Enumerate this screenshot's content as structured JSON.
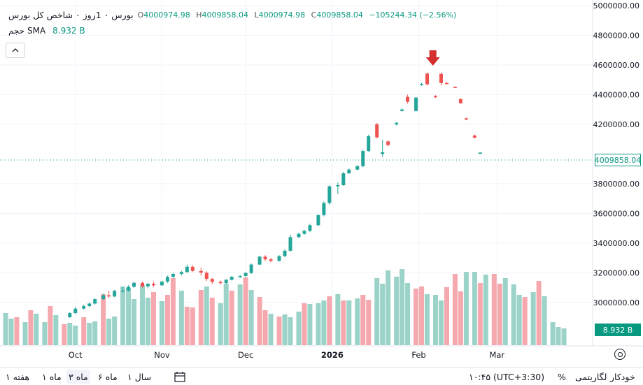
{
  "legend": {
    "title": "بورس ۰ 1روز ۰ شاخص کل بورس",
    "open_label": "O",
    "open": "4000974.98",
    "high_label": "H",
    "high": "4009858.04",
    "low_label": "L",
    "low": "4000974.98",
    "close_label": "C",
    "close": "4009858.04",
    "change": "−105244.34 (−2.56%)"
  },
  "volume_legend": {
    "name": "حجم SMA",
    "value": "8.932 B"
  },
  "collapse_icon": "chevron-up-icon",
  "price_tag": "4009858.04",
  "volume_tag": "8.932 B",
  "settings_icon": "gear-icon",
  "colors": {
    "up": "#26a69a",
    "down": "#ef5350",
    "volume_up": "#9bd3c9",
    "volume_down": "#f5a8ad",
    "marker": "#d32f2f"
  },
  "chart_data": {
    "type": "candlestick",
    "y_ticks": [
      "5000000.00",
      "4800000.00",
      "4600000.00",
      "4400000.00",
      "4200000.00",
      "3800000.00",
      "3600000.00",
      "3400000.00",
      "3200000.00",
      "3000000.00"
    ],
    "ylim": [
      2900000,
      5000000
    ],
    "x_ticks": [
      {
        "label": "Oct",
        "date": "2025-10-01"
      },
      {
        "label": "Nov",
        "date": "2025-11-01"
      },
      {
        "label": "Dec",
        "date": "2025-12-01"
      },
      {
        "label": "2026",
        "date": "2026-01-01"
      },
      {
        "label": "Feb",
        "date": "2026-02-01"
      },
      {
        "label": "Mar",
        "date": "2026-03-01"
      }
    ],
    "xlim": [
      "2025-09-06",
      "2026-03-31"
    ],
    "marker": {
      "type": "arrow-down",
      "date": "2026-01-17"
    },
    "candles": [
      {
        "d": "2025-09-29",
        "o": 2900000,
        "h": 2935000,
        "l": 2895000,
        "c": 2928000
      },
      {
        "d": "2025-10-01",
        "o": 2928000,
        "h": 2970000,
        "l": 2920000,
        "c": 2958000
      },
      {
        "d": "2025-10-04",
        "o": 2958000,
        "h": 2985000,
        "l": 2950000,
        "c": 2975000
      },
      {
        "d": "2025-10-06",
        "o": 2975000,
        "h": 3000000,
        "l": 2968000,
        "c": 2992000
      },
      {
        "d": "2025-10-08",
        "o": 2992000,
        "h": 3030000,
        "l": 2985000,
        "c": 3022000
      },
      {
        "d": "2025-10-11",
        "o": 3022000,
        "h": 3060000,
        "l": 3015000,
        "c": 3048000
      },
      {
        "d": "2025-10-13",
        "o": 3048000,
        "h": 3078000,
        "l": 3030000,
        "c": 3040000
      },
      {
        "d": "2025-10-15",
        "o": 3040000,
        "h": 3085000,
        "l": 3035000,
        "c": 3078000
      },
      {
        "d": "2025-10-18",
        "o": 3078000,
        "h": 3102000,
        "l": 3065000,
        "c": 3080000
      },
      {
        "d": "2025-10-20",
        "o": 3080000,
        "h": 3115000,
        "l": 3072000,
        "c": 3105000
      },
      {
        "d": "2025-10-22",
        "o": 3105000,
        "h": 3140000,
        "l": 3098000,
        "c": 3132000
      },
      {
        "d": "2025-10-25",
        "o": 3132000,
        "h": 3140000,
        "l": 3098000,
        "c": 3108000
      },
      {
        "d": "2025-10-27",
        "o": 3108000,
        "h": 3132000,
        "l": 3095000,
        "c": 3125000
      },
      {
        "d": "2025-10-29",
        "o": 3125000,
        "h": 3138000,
        "l": 3105000,
        "c": 3115000
      },
      {
        "d": "2025-11-01",
        "o": 3115000,
        "h": 3145000,
        "l": 3110000,
        "c": 3140000
      },
      {
        "d": "2025-11-03",
        "o": 3140000,
        "h": 3180000,
        "l": 3132000,
        "c": 3172000
      },
      {
        "d": "2025-11-05",
        "o": 3172000,
        "h": 3200000,
        "l": 3165000,
        "c": 3192000
      },
      {
        "d": "2025-11-08",
        "o": 3192000,
        "h": 3212000,
        "l": 3182000,
        "c": 3205000
      },
      {
        "d": "2025-11-10",
        "o": 3205000,
        "h": 3255000,
        "l": 3198000,
        "c": 3240000
      },
      {
        "d": "2025-11-12",
        "o": 3240000,
        "h": 3250000,
        "l": 3205000,
        "c": 3212000
      },
      {
        "d": "2025-11-15",
        "o": 3212000,
        "h": 3235000,
        "l": 3180000,
        "c": 3200000
      },
      {
        "d": "2025-11-17",
        "o": 3200000,
        "h": 3210000,
        "l": 3145000,
        "c": 3158000
      },
      {
        "d": "2025-11-19",
        "o": 3158000,
        "h": 3165000,
        "l": 3125000,
        "c": 3138000
      },
      {
        "d": "2025-11-22",
        "o": 3138000,
        "h": 3148000,
        "l": 3120000,
        "c": 3130000
      },
      {
        "d": "2025-11-24",
        "o": 3130000,
        "h": 3158000,
        "l": 3125000,
        "c": 3152000
      },
      {
        "d": "2025-11-26",
        "o": 3152000,
        "h": 3178000,
        "l": 3148000,
        "c": 3172000
      },
      {
        "d": "2025-11-29",
        "o": 3172000,
        "h": 3185000,
        "l": 3162000,
        "c": 3178000
      },
      {
        "d": "2025-12-01",
        "o": 3178000,
        "h": 3205000,
        "l": 3172000,
        "c": 3198000
      },
      {
        "d": "2025-12-03",
        "o": 3198000,
        "h": 3262000,
        "l": 3192000,
        "c": 3255000
      },
      {
        "d": "2025-12-06",
        "o": 3255000,
        "h": 3315000,
        "l": 3250000,
        "c": 3308000
      },
      {
        "d": "2025-12-08",
        "o": 3308000,
        "h": 3318000,
        "l": 3280000,
        "c": 3290000
      },
      {
        "d": "2025-12-10",
        "o": 3290000,
        "h": 3300000,
        "l": 3270000,
        "c": 3280000
      },
      {
        "d": "2025-12-13",
        "o": 3280000,
        "h": 3318000,
        "l": 3275000,
        "c": 3312000
      },
      {
        "d": "2025-12-15",
        "o": 3312000,
        "h": 3358000,
        "l": 3305000,
        "c": 3348000
      },
      {
        "d": "2025-12-17",
        "o": 3348000,
        "h": 3455000,
        "l": 3342000,
        "c": 3440000
      },
      {
        "d": "2025-12-20",
        "o": 3440000,
        "h": 3470000,
        "l": 3432000,
        "c": 3462000
      },
      {
        "d": "2025-12-22",
        "o": 3462000,
        "h": 3490000,
        "l": 3455000,
        "c": 3482000
      },
      {
        "d": "2025-12-24",
        "o": 3482000,
        "h": 3530000,
        "l": 3475000,
        "c": 3520000
      },
      {
        "d": "2025-12-27",
        "o": 3520000,
        "h": 3595000,
        "l": 3512000,
        "c": 3588000
      },
      {
        "d": "2025-12-29",
        "o": 3588000,
        "h": 3680000,
        "l": 3580000,
        "c": 3670000
      },
      {
        "d": "2025-12-31",
        "o": 3670000,
        "h": 3790000,
        "l": 3660000,
        "c": 3782000
      },
      {
        "d": "2026-01-03",
        "o": 3782000,
        "h": 3808000,
        "l": 3730000,
        "c": 3790000
      },
      {
        "d": "2026-01-05",
        "o": 3790000,
        "h": 3880000,
        "l": 3785000,
        "c": 3870000
      },
      {
        "d": "2026-01-07",
        "o": 3870000,
        "h": 3902000,
        "l": 3865000,
        "c": 3895000
      },
      {
        "d": "2026-01-10",
        "o": 3895000,
        "h": 3925000,
        "l": 3890000,
        "c": 3918000
      },
      {
        "d": "2026-01-12",
        "o": 3918000,
        "h": 4030000,
        "l": 3910000,
        "c": 4020000
      },
      {
        "d": "2026-01-14",
        "o": 4020000,
        "h": 4130000,
        "l": 4015000,
        "c": 4120000
      },
      {
        "d": "2026-01-17",
        "o": 4200000,
        "h": 4210000,
        "l": 4105000,
        "c": 4112000
      },
      {
        "d": "2026-01-19",
        "o": 4000000,
        "h": 4095000,
        "l": 3980000,
        "c": 4012000
      },
      {
        "d": "2026-01-21",
        "o": 4085000,
        "h": 4090000,
        "l": 4052000,
        "c": 4060000
      },
      {
        "d": "2026-01-24",
        "o": 4200000,
        "h": 4215000,
        "l": 4192000,
        "c": 4210000
      },
      {
        "d": "2026-01-26",
        "o": 4290000,
        "h": 4310000,
        "l": 4285000,
        "c": 4300000
      },
      {
        "d": "2026-01-28",
        "o": 4385000,
        "h": 4400000,
        "l": 4340000,
        "c": 4352000
      },
      {
        "d": "2026-01-31",
        "o": 4290000,
        "h": 4385000,
        "l": 4285000,
        "c": 4380000
      },
      {
        "d": "2026-02-02",
        "o": 4470000,
        "h": 4480000,
        "l": 4460000,
        "c": 4472000
      },
      {
        "d": "2026-02-04",
        "o": 4542000,
        "h": 4548000,
        "l": 4460000,
        "c": 4470000
      },
      {
        "d": "2026-02-07",
        "o": 4390000,
        "h": 4396000,
        "l": 4378000,
        "c": 4382000
      },
      {
        "d": "2026-02-09",
        "o": 4540000,
        "h": 4550000,
        "l": 4462000,
        "c": 4478000
      },
      {
        "d": "2026-02-11",
        "o": 4478000,
        "h": 4486000,
        "l": 4470000,
        "c": 4474000
      },
      {
        "d": "2026-02-14",
        "o": 4452000,
        "h": 4456000,
        "l": 4446000,
        "c": 4449000
      },
      {
        "d": "2026-02-16",
        "o": 4370000,
        "h": 4375000,
        "l": 4338000,
        "c": 4342000
      },
      {
        "d": "2026-02-18",
        "o": 4240000,
        "h": 4245000,
        "l": 4228000,
        "c": 4232000
      },
      {
        "d": "2026-02-21",
        "o": 4125000,
        "h": 4130000,
        "l": 4105000,
        "c": 4110000
      },
      {
        "d": "2026-02-23",
        "o": 4000975,
        "h": 4009858,
        "l": 4000975,
        "c": 4009858
      }
    ]
  },
  "volume_data": {
    "vmax": 130,
    "bars": [
      {
        "d": "2025-09-06",
        "v": 46,
        "up": true
      },
      {
        "d": "2025-09-08",
        "v": 38,
        "up": true
      },
      {
        "d": "2025-09-10",
        "v": 40,
        "up": false
      },
      {
        "d": "2025-09-13",
        "v": 33,
        "up": true
      },
      {
        "d": "2025-09-15",
        "v": 50,
        "up": false
      },
      {
        "d": "2025-09-17",
        "v": 45,
        "up": true
      },
      {
        "d": "2025-09-20",
        "v": 33,
        "up": true
      },
      {
        "d": "2025-09-22",
        "v": 56,
        "up": false
      },
      {
        "d": "2025-09-24",
        "v": 43,
        "up": true
      },
      {
        "d": "2025-09-27",
        "v": 30,
        "up": false
      },
      {
        "d": "2025-09-29",
        "v": 32,
        "up": true
      },
      {
        "d": "2025-10-01",
        "v": 28,
        "up": true
      },
      {
        "d": "2025-10-04",
        "v": 40,
        "up": false
      },
      {
        "d": "2025-10-06",
        "v": 32,
        "up": true
      },
      {
        "d": "2025-10-08",
        "v": 34,
        "up": true
      },
      {
        "d": "2025-10-11",
        "v": 73,
        "up": false
      },
      {
        "d": "2025-10-13",
        "v": 38,
        "up": true
      },
      {
        "d": "2025-10-15",
        "v": 41,
        "up": true
      },
      {
        "d": "2025-10-18",
        "v": 84,
        "up": true
      },
      {
        "d": "2025-10-20",
        "v": 82,
        "up": true
      },
      {
        "d": "2025-10-22",
        "v": 66,
        "up": true
      },
      {
        "d": "2025-10-25",
        "v": 86,
        "up": true
      },
      {
        "d": "2025-10-27",
        "v": 68,
        "up": true
      },
      {
        "d": "2025-10-29",
        "v": 76,
        "up": false
      },
      {
        "d": "2025-11-01",
        "v": 63,
        "up": true
      },
      {
        "d": "2025-11-03",
        "v": 72,
        "up": false
      },
      {
        "d": "2025-11-05",
        "v": 96,
        "up": false
      },
      {
        "d": "2025-11-08",
        "v": 78,
        "up": true
      },
      {
        "d": "2025-11-10",
        "v": 55,
        "up": false
      },
      {
        "d": "2025-11-12",
        "v": 54,
        "up": false
      },
      {
        "d": "2025-11-15",
        "v": 79,
        "up": false
      },
      {
        "d": "2025-11-17",
        "v": 84,
        "up": true
      },
      {
        "d": "2025-11-19",
        "v": 68,
        "up": false
      },
      {
        "d": "2025-11-22",
        "v": 60,
        "up": true
      },
      {
        "d": "2025-11-24",
        "v": 88,
        "up": true
      },
      {
        "d": "2025-11-26",
        "v": 78,
        "up": false
      },
      {
        "d": "2025-11-29",
        "v": 87,
        "up": true
      },
      {
        "d": "2025-12-01",
        "v": 97,
        "up": false
      },
      {
        "d": "2025-12-03",
        "v": 79,
        "up": true
      },
      {
        "d": "2025-12-06",
        "v": 69,
        "up": false
      },
      {
        "d": "2025-12-08",
        "v": 50,
        "up": false
      },
      {
        "d": "2025-12-10",
        "v": 45,
        "up": true
      },
      {
        "d": "2025-12-13",
        "v": 41,
        "up": false
      },
      {
        "d": "2025-12-15",
        "v": 44,
        "up": true
      },
      {
        "d": "2025-12-17",
        "v": 40,
        "up": true
      },
      {
        "d": "2025-12-20",
        "v": 48,
        "up": true
      },
      {
        "d": "2025-12-22",
        "v": 60,
        "up": false
      },
      {
        "d": "2025-12-24",
        "v": 59,
        "up": true
      },
      {
        "d": "2025-12-27",
        "v": 60,
        "up": true
      },
      {
        "d": "2025-12-29",
        "v": 64,
        "up": true
      },
      {
        "d": "2025-12-31",
        "v": 70,
        "up": false
      },
      {
        "d": "2026-01-03",
        "v": 73,
        "up": true
      },
      {
        "d": "2026-01-05",
        "v": 64,
        "up": false
      },
      {
        "d": "2026-01-07",
        "v": 64,
        "up": true
      },
      {
        "d": "2026-01-10",
        "v": 67,
        "up": true
      },
      {
        "d": "2026-01-12",
        "v": 72,
        "up": false
      },
      {
        "d": "2026-01-14",
        "v": 65,
        "up": false
      },
      {
        "d": "2026-01-17",
        "v": 96,
        "up": true
      },
      {
        "d": "2026-01-19",
        "v": 88,
        "up": true
      },
      {
        "d": "2026-01-21",
        "v": 107,
        "up": true
      },
      {
        "d": "2026-01-24",
        "v": 98,
        "up": true
      },
      {
        "d": "2026-01-26",
        "v": 109,
        "up": true
      },
      {
        "d": "2026-01-28",
        "v": 89,
        "up": true
      },
      {
        "d": "2026-01-31",
        "v": 81,
        "up": false
      },
      {
        "d": "2026-02-02",
        "v": 84,
        "up": false
      },
      {
        "d": "2026-02-04",
        "v": 73,
        "up": true
      },
      {
        "d": "2026-02-07",
        "v": 72,
        "up": true
      },
      {
        "d": "2026-02-09",
        "v": 64,
        "up": true
      },
      {
        "d": "2026-02-11",
        "v": 83,
        "up": false
      },
      {
        "d": "2026-02-14",
        "v": 102,
        "up": false
      },
      {
        "d": "2026-02-16",
        "v": 77,
        "up": false
      },
      {
        "d": "2026-02-18",
        "v": 105,
        "up": true
      },
      {
        "d": "2026-02-21",
        "v": 105,
        "up": true
      },
      {
        "d": "2026-02-23",
        "v": 89,
        "up": false
      },
      {
        "d": "2026-02-25",
        "v": 101,
        "up": true
      },
      {
        "d": "2026-02-28",
        "v": 102,
        "up": false
      },
      {
        "d": "2026-03-02",
        "v": 88,
        "up": false
      },
      {
        "d": "2026-03-04",
        "v": 96,
        "up": true
      },
      {
        "d": "2026-03-07",
        "v": 87,
        "up": true
      },
      {
        "d": "2026-03-09",
        "v": 72,
        "up": true
      },
      {
        "d": "2026-03-11",
        "v": 69,
        "up": false
      },
      {
        "d": "2026-03-14",
        "v": 76,
        "up": true
      },
      {
        "d": "2026-03-16",
        "v": 92,
        "up": false
      },
      {
        "d": "2026-03-18",
        "v": 70,
        "up": true
      },
      {
        "d": "2026-03-21",
        "v": 33,
        "up": true
      },
      {
        "d": "2026-03-23",
        "v": 26,
        "up": true
      },
      {
        "d": "2026-03-25",
        "v": 24,
        "up": true
      }
    ]
  },
  "bottom_bar": {
    "timeframes": [
      "۱ هفته",
      "۱ ماه",
      "۳ ماه",
      "۶ ماه",
      "سال ۱"
    ],
    "active_timeframe": "۳ ماه",
    "calendar_icon": "calendar-range-icon",
    "time": "۱۰:۴۵ (UTC+3:30)",
    "percent": "%",
    "log": "لگاریتمی",
    "auto": "خودکار"
  }
}
